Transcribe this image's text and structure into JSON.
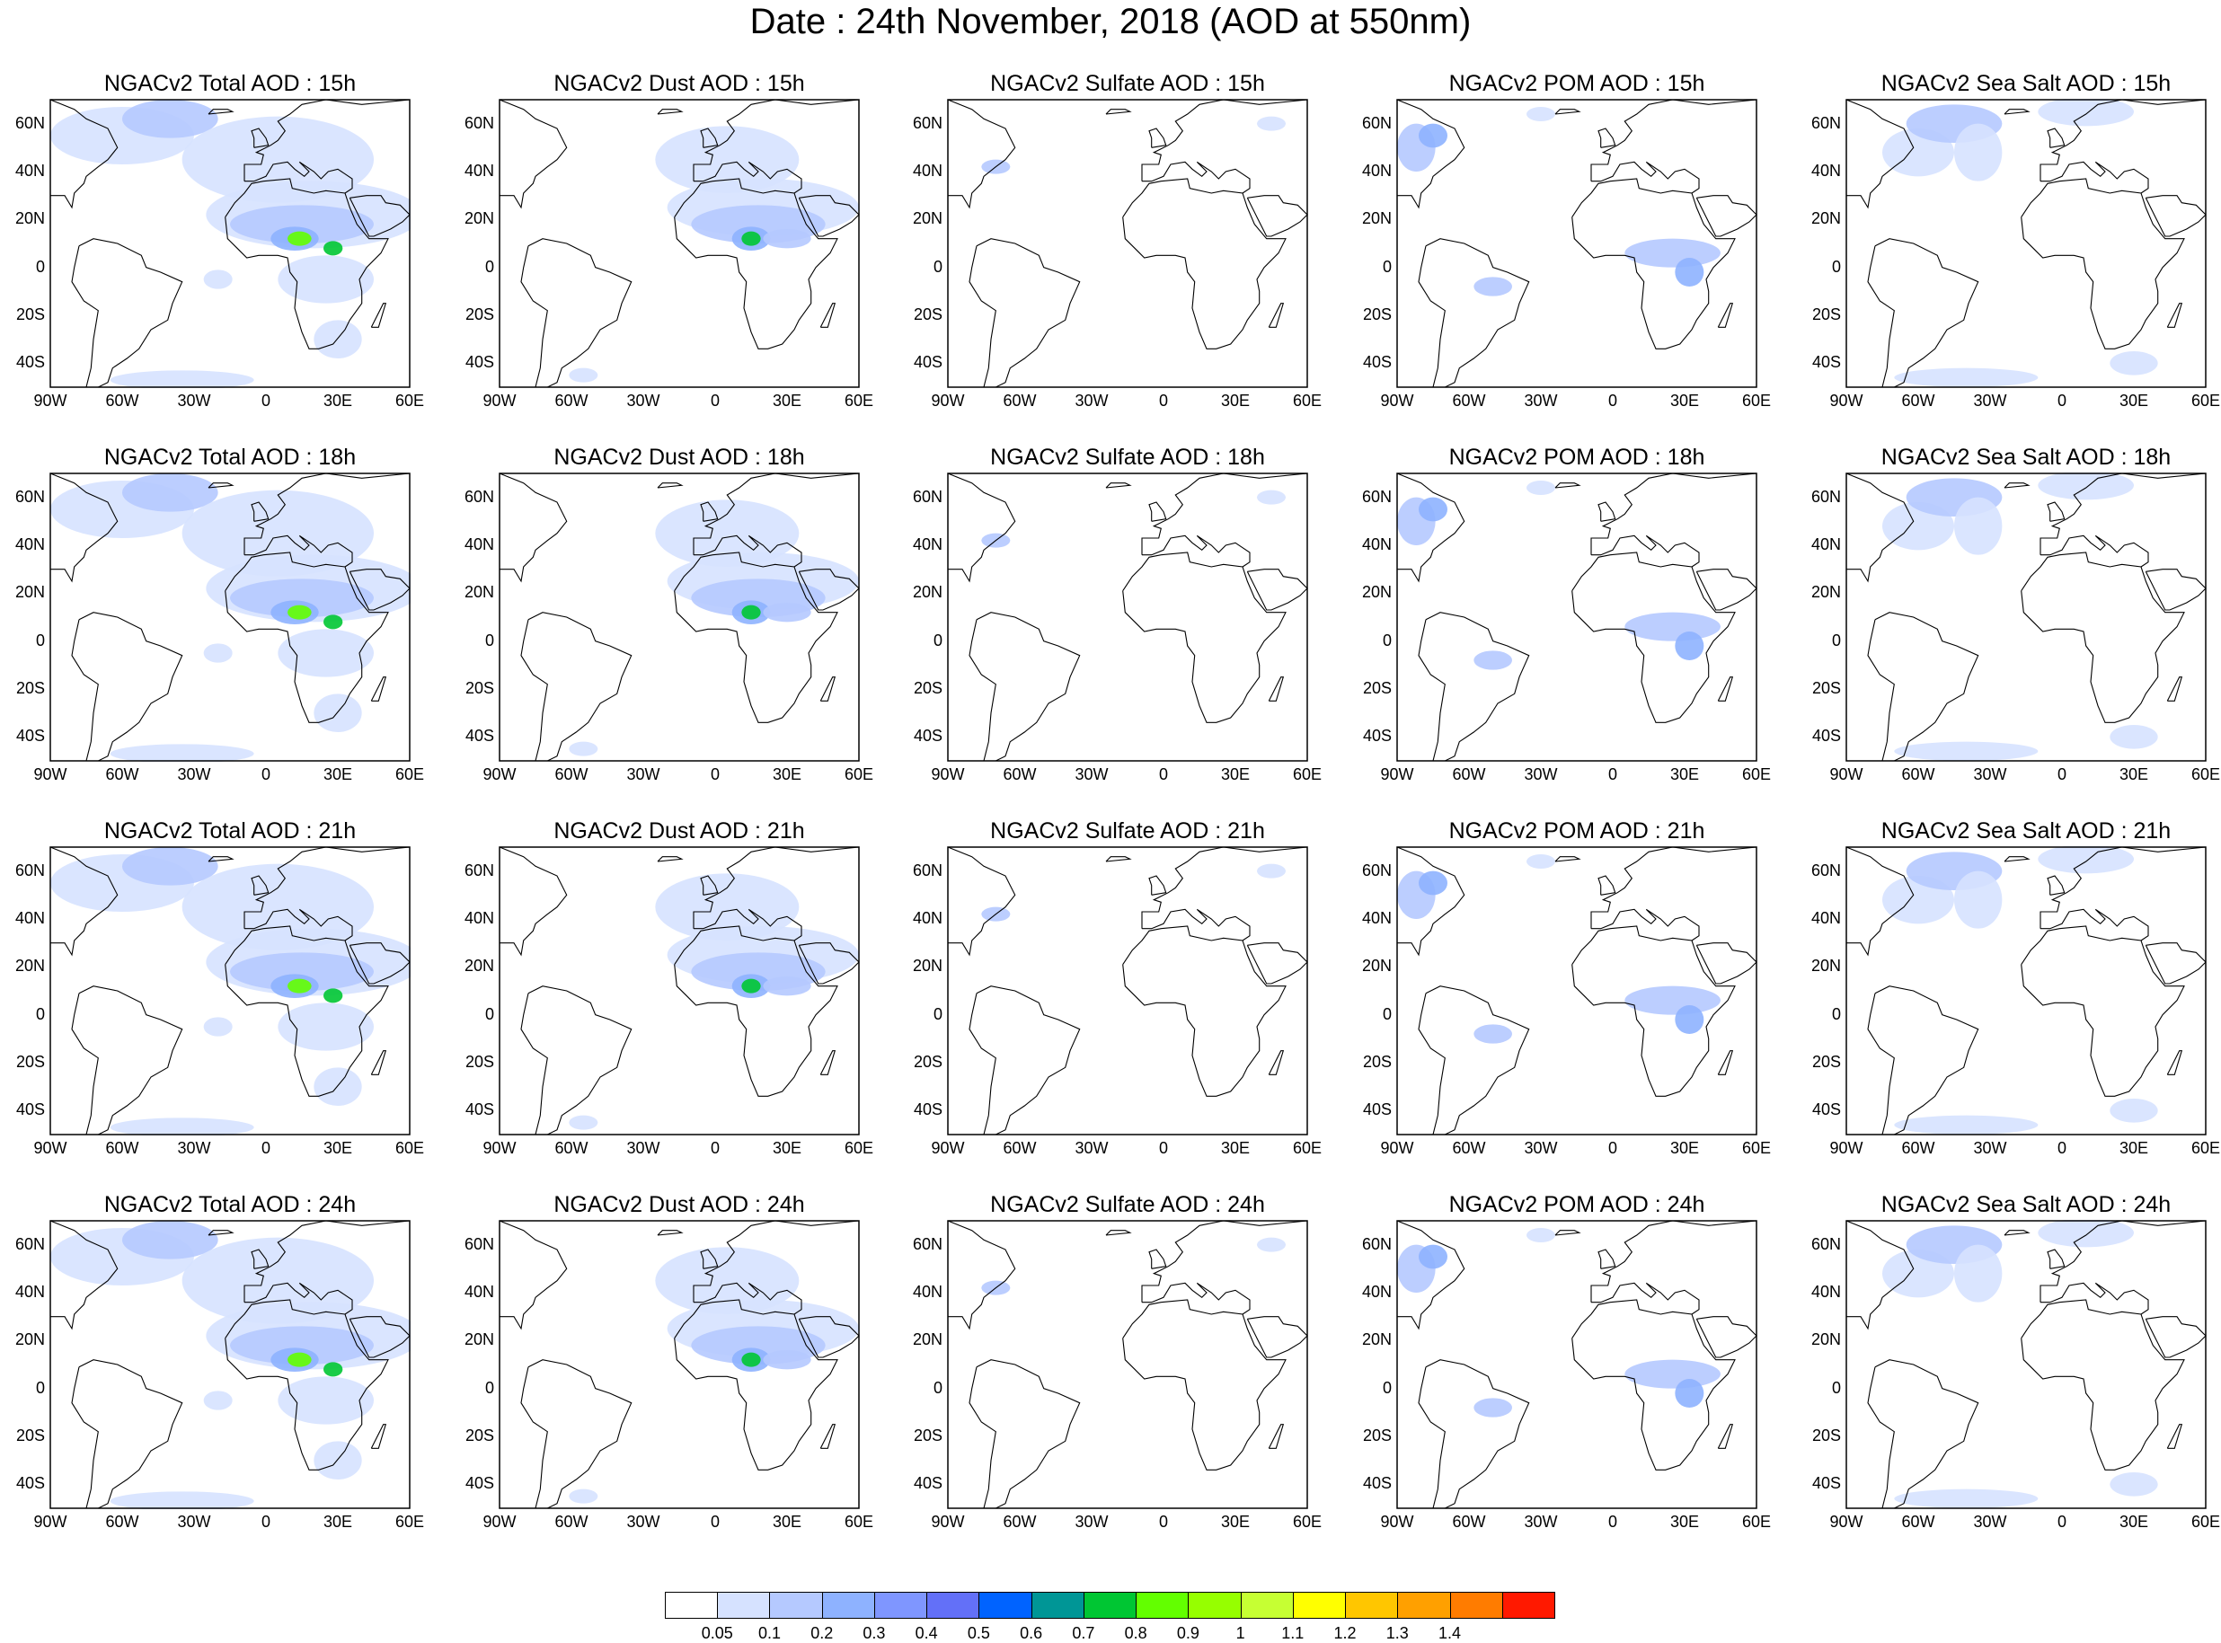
{
  "title": "Date : 24th November, 2018 (AOD at 550nm)",
  "axes": {
    "lat_ticks": [
      "60N",
      "40N",
      "20N",
      "0",
      "20S",
      "40S"
    ],
    "lon_ticks": [
      "90W",
      "60W",
      "30W",
      "0",
      "30E",
      "60E"
    ]
  },
  "rows": [
    {
      "panels": [
        "NGACv2 Total AOD : 15h",
        "NGACv2 Dust AOD : 15h",
        "NGACv2 Sulfate AOD : 15h",
        "NGACv2 POM AOD : 15h",
        "NGACv2 Sea Salt AOD : 15h"
      ]
    },
    {
      "panels": [
        "NGACv2 Total AOD : 18h",
        "NGACv2 Dust AOD : 18h",
        "NGACv2 Sulfate AOD : 18h",
        "NGACv2 POM AOD : 18h",
        "NGACv2 Sea Salt AOD : 18h"
      ]
    },
    {
      "panels": [
        "NGACv2 Total AOD : 21h",
        "NGACv2 Dust AOD : 21h",
        "NGACv2 Sulfate AOD : 21h",
        "NGACv2 POM AOD : 21h",
        "NGACv2 Sea Salt AOD : 21h"
      ]
    },
    {
      "panels": [
        "NGACv2 Total AOD : 24h",
        "NGACv2 Dust AOD : 24h",
        "NGACv2 Sulfate AOD : 24h",
        "NGACv2 POM AOD : 24h",
        "NGACv2 Sea Salt  AOD : 24h"
      ]
    }
  ],
  "colorbar": {
    "labels": [
      "0.05",
      "0.1",
      "0.2",
      "0.3",
      "0.4",
      "0.5",
      "0.6",
      "0.7",
      "0.8",
      "0.9",
      "1",
      "1.1",
      "1.2",
      "1.3",
      "1.4"
    ],
    "colors": [
      "#ffffff",
      "#d6e2ff",
      "#b5c9ff",
      "#8eb2ff",
      "#7f96ff",
      "#6370f8",
      "#0063ff",
      "#009696",
      "#00c633",
      "#63ff00",
      "#96ff00",
      "#c6ff33",
      "#ffff00",
      "#ffc600",
      "#ffa000",
      "#ff7c00",
      "#ff1900"
    ]
  }
}
